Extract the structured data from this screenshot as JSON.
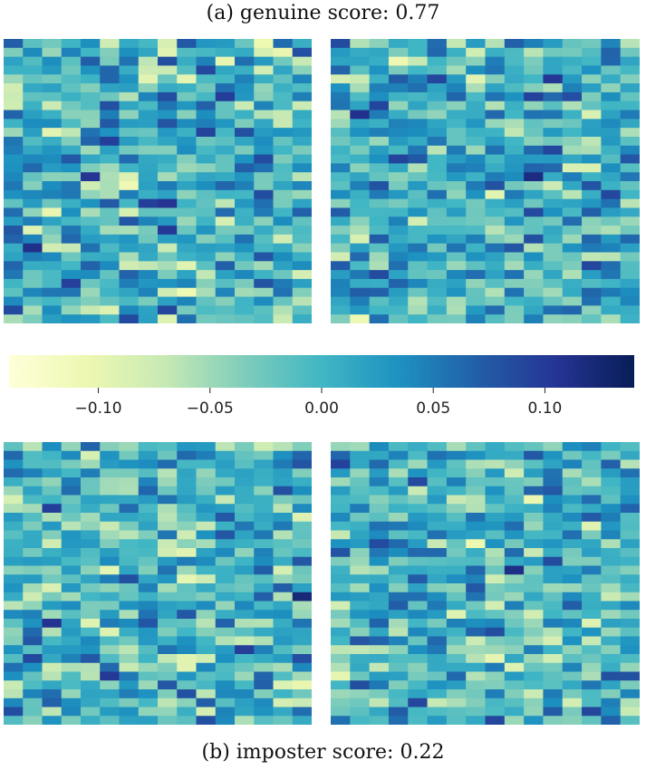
{
  "captions": {
    "genuine": "(a) genuine score: 0.77",
    "imposter": "(b) imposter score: 0.22"
  },
  "chart_data": {
    "type": "heatmap",
    "panels": [
      {
        "group": "genuine",
        "side": "left"
      },
      {
        "group": "genuine",
        "side": "right"
      },
      {
        "group": "imposter",
        "side": "left"
      },
      {
        "group": "imposter",
        "side": "right"
      }
    ],
    "grid": {
      "cols": 16,
      "rows": 32
    },
    "value_range": [
      -0.14,
      0.14
    ],
    "colormap": "YlGnBu",
    "colormap_stops": [
      "#ffffd9",
      "#edf8b1",
      "#c7e9b4",
      "#7fcdbb",
      "#41b6c4",
      "#1d91c0",
      "#225ea8",
      "#253494",
      "#081d58"
    ],
    "colorbar": {
      "orientation": "horizontal",
      "ticks": [
        -0.1,
        -0.05,
        0.0,
        0.05,
        0.1
      ],
      "tick_labels": [
        "−0.10",
        "−0.05",
        "0.00",
        "0.05",
        "0.10"
      ]
    }
  }
}
